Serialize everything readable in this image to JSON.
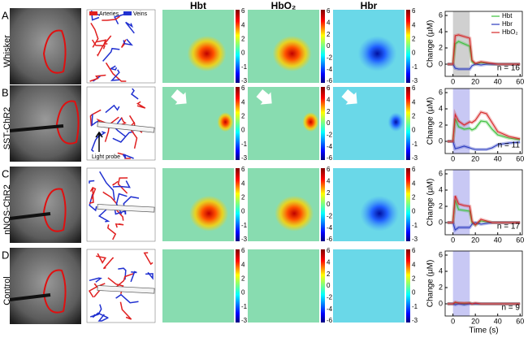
{
  "figure": {
    "panel_labels": [
      "A",
      "B",
      "C",
      "D"
    ],
    "row_labels": [
      "Whisker",
      "SST-ChR2",
      "nNOS-ChR2",
      "Control"
    ],
    "columns": [
      "Hbt",
      "HbO₂",
      "Hbr"
    ],
    "vessel_legend": [
      "Arteries",
      "Veins"
    ],
    "light_probe": "Light probe",
    "colorbar_ticks": [
      [
        6,
        4,
        2,
        0,
        -1,
        -3
      ],
      [
        6,
        4,
        2,
        0,
        -2,
        -4,
        -6
      ],
      [
        6,
        4,
        2,
        0,
        -1,
        -3
      ]
    ]
  },
  "chart_data": [
    {
      "type": "line",
      "y_label": "Change (µM)",
      "annotation": "n = 16",
      "legend": "upper right",
      "stimulus_window": [
        0,
        15
      ],
      "stimulus_color": "#d0d0d0",
      "xlim": [
        -7,
        62
      ],
      "xticks": [
        0,
        20,
        40,
        60
      ],
      "ylim": [
        -1.5,
        6.5
      ],
      "yticks": [
        0,
        2,
        4,
        6
      ],
      "x": [
        -5,
        0,
        2,
        5,
        10,
        15,
        17,
        20,
        25,
        30,
        35,
        40,
        50,
        60
      ],
      "series": [
        {
          "name": "Hbt",
          "color": "#3cc03c",
          "values": [
            0,
            0,
            2.5,
            2.8,
            2.5,
            2.2,
            0.3,
            0,
            0.2,
            0.1,
            0,
            0,
            0,
            0
          ]
        },
        {
          "name": "Hbr",
          "color": "#2b3bbf",
          "values": [
            0,
            0,
            -0.5,
            -0.6,
            -0.6,
            -0.6,
            -0.2,
            0,
            -0.1,
            0,
            0,
            0,
            0,
            0
          ]
        },
        {
          "name": "HbO₂",
          "color": "#d62728",
          "values": [
            0,
            0,
            3.5,
            3.6,
            3.4,
            3.2,
            0.5,
            0.1,
            0.3,
            0.2,
            0.1,
            0,
            0,
            0
          ]
        }
      ]
    },
    {
      "type": "line",
      "y_label": "Change (µM)",
      "annotation": "n = 11",
      "legend": false,
      "stimulus_window": [
        0,
        15
      ],
      "stimulus_color": "#c8c8f4",
      "xlim": [
        -7,
        62
      ],
      "xticks": [
        0,
        20,
        40,
        60
      ],
      "ylim": [
        -1.5,
        6.5
      ],
      "yticks": [
        0,
        2,
        4,
        6
      ],
      "x": [
        -5,
        0,
        2,
        5,
        10,
        15,
        17,
        20,
        25,
        30,
        35,
        40,
        50,
        60
      ],
      "series": [
        {
          "name": "Hbt",
          "color": "#3cc03c",
          "values": [
            0,
            0,
            2.8,
            1.8,
            1.5,
            1.6,
            1.4,
            1.6,
            2.5,
            2.4,
            1.5,
            0.8,
            0.4,
            0.2
          ]
        },
        {
          "name": "Hbr",
          "color": "#2b3bbf",
          "values": [
            0,
            0,
            -0.9,
            -0.8,
            -0.6,
            -0.8,
            -0.9,
            -1,
            -1,
            -1,
            -0.8,
            -0.4,
            -0.2,
            -0.1
          ]
        },
        {
          "name": "HbO₂",
          "color": "#d62728",
          "values": [
            0,
            0,
            3.3,
            2.5,
            2,
            2.4,
            2.3,
            2.6,
            3.6,
            3.4,
            2.3,
            1.2,
            0.6,
            0.3
          ]
        }
      ]
    },
    {
      "type": "line",
      "y_label": "Change (µM)",
      "annotation": "n = 17",
      "legend": false,
      "stimulus_window": [
        0,
        15
      ],
      "stimulus_color": "#c8c8f4",
      "xlim": [
        -7,
        62
      ],
      "xticks": [
        0,
        20,
        40,
        60
      ],
      "ylim": [
        -1.5,
        6.5
      ],
      "yticks": [
        0,
        2,
        4,
        6
      ],
      "x": [
        -5,
        0,
        2,
        5,
        10,
        15,
        17,
        20,
        25,
        30,
        35,
        40,
        50,
        60
      ],
      "series": [
        {
          "name": "Hbt",
          "color": "#3cc03c",
          "values": [
            0,
            0,
            2.8,
            1.6,
            1.5,
            1.4,
            0,
            -0.3,
            0.2,
            0.1,
            0,
            0,
            0,
            0
          ]
        },
        {
          "name": "Hbr",
          "color": "#2b3bbf",
          "values": [
            0,
            0,
            -0.9,
            -0.6,
            -0.6,
            -0.6,
            -0.2,
            0,
            -0.2,
            -0.1,
            0,
            0,
            0,
            0
          ]
        },
        {
          "name": "HbO₂",
          "color": "#d62728",
          "values": [
            0,
            0,
            3.3,
            2.3,
            2.1,
            2,
            0.2,
            -0.3,
            0.4,
            0.2,
            0,
            0,
            0,
            0
          ]
        }
      ]
    },
    {
      "type": "line",
      "y_label": "Change (µM)",
      "x_label": "Time (s)",
      "annotation": "n = 9",
      "legend": false,
      "stimulus_window": [
        0,
        15
      ],
      "stimulus_color": "#c8c8f4",
      "xlim": [
        -7,
        62
      ],
      "xticks": [
        0,
        20,
        40,
        60
      ],
      "ylim": [
        -1.5,
        6.5
      ],
      "yticks": [
        0,
        2,
        4,
        6
      ],
      "x": [
        -5,
        0,
        2,
        5,
        10,
        15,
        17,
        20,
        25,
        30,
        35,
        40,
        50,
        60
      ],
      "series": [
        {
          "name": "Hbt",
          "color": "#3cc03c",
          "values": [
            0,
            0,
            0.1,
            0.1,
            0,
            0.1,
            0,
            0,
            0,
            0,
            0,
            0,
            0,
            0
          ]
        },
        {
          "name": "Hbr",
          "color": "#2b3bbf",
          "values": [
            0,
            0,
            -0.1,
            0,
            -0.1,
            0,
            0,
            0,
            0,
            0,
            0,
            0,
            0,
            0
          ]
        },
        {
          "name": "HbO₂",
          "color": "#d62728",
          "values": [
            0,
            0,
            0.2,
            0.1,
            0.1,
            0.1,
            0,
            0.1,
            0,
            0,
            0,
            0,
            0,
            0
          ]
        }
      ]
    }
  ]
}
